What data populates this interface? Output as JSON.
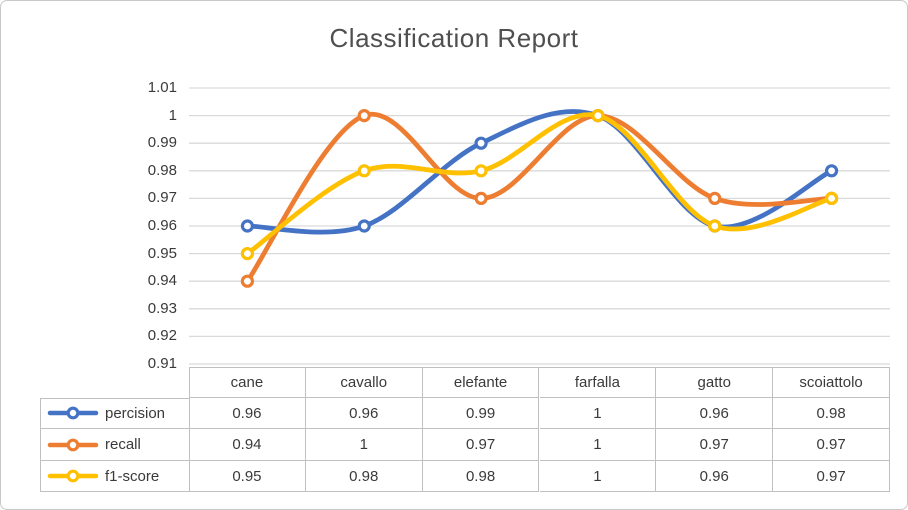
{
  "chart_data": {
    "type": "line",
    "title": "Classification Report",
    "categories": [
      "cane",
      "cavallo",
      "elefante",
      "farfalla",
      "gatto",
      "scoiattolo"
    ],
    "series": [
      {
        "name": "percision",
        "color": "#4472C4",
        "values": [
          0.96,
          0.96,
          0.99,
          1,
          0.96,
          0.98
        ]
      },
      {
        "name": "recall",
        "color": "#ED7D31",
        "values": [
          0.94,
          1,
          0.97,
          1,
          0.97,
          0.97
        ]
      },
      {
        "name": "f1-score",
        "color": "#FFC000",
        "values": [
          0.95,
          0.98,
          0.98,
          1,
          0.96,
          0.97
        ]
      }
    ],
    "ylim": [
      0.91,
      1.01
    ],
    "ytick_labels": [
      "1.01",
      "1",
      "0.99",
      "0.98",
      "0.97",
      "0.96",
      "0.95",
      "0.94",
      "0.93",
      "0.92",
      "0.91"
    ],
    "grid": true,
    "smooth_lines": true,
    "marker": "open-circle",
    "legend_position": "data-table-left",
    "data_table_shown": true
  },
  "colors": {
    "gridline": "#d9d9d9",
    "table_border": "#c0c0c0",
    "text": "#3a3a3a",
    "title_text": "#4f4f4f",
    "frame_border": "#c9c9c9",
    "background": "#ffffff"
  }
}
